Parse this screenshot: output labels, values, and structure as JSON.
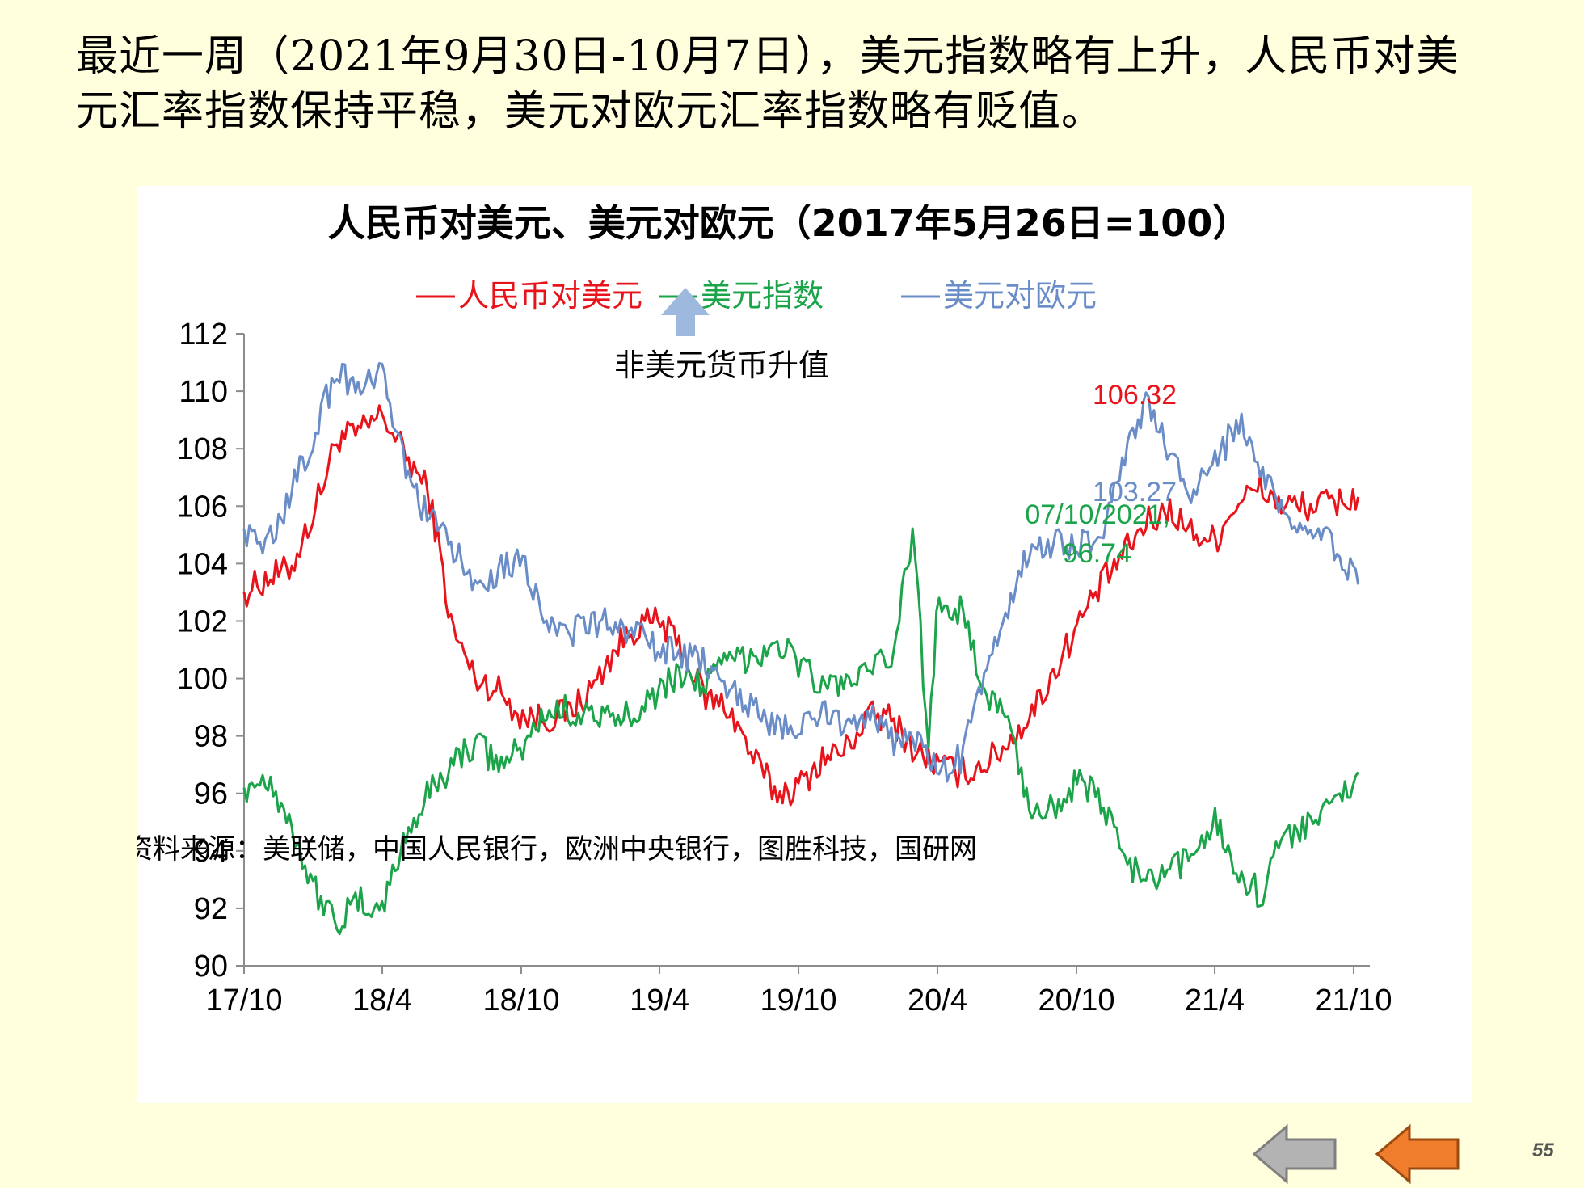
{
  "heading": {
    "line1": "最近一周（2021年9月30日-10月7日），美元指数略有上升，人民币对美",
    "line2": "元汇率指数保持平稳，美元对欧元汇率指数略有贬值。"
  },
  "source_note": "资料来源：美联储，中国人民银行，欧洲中央银行，图胜科技，国研网",
  "page_number": "55",
  "nav": {
    "back_icon": "gray-left-arrow-icon",
    "prev_icon": "orange-left-arrow-icon"
  },
  "chart_data": {
    "type": "line",
    "title": "人民币对美元、美元对欧元（2017年5月26日=100）",
    "legend_position": "top",
    "grid": false,
    "xlabel": "",
    "ylabel": "",
    "ylim": [
      90,
      112
    ],
    "yticks": [
      "90",
      "92",
      "94",
      "96",
      "98",
      "100",
      "102",
      "104",
      "106",
      "108",
      "110",
      "112"
    ],
    "xlim": [
      "2017-10",
      "2021-10"
    ],
    "xticks": [
      "17/10",
      "18/4",
      "18/10",
      "19/4",
      "19/10",
      "20/4",
      "20/10",
      "21/4",
      "21/10"
    ],
    "annotations": {
      "arrow_label": "非美元货币升值",
      "arrow_color": "#9DB9DD",
      "end_label_rmb": "106.32",
      "end_label_eur": "103.27",
      "end_label_usd_line1": "07/10/2021,",
      "end_label_usd_line2": "96.74"
    },
    "series": [
      {
        "name": "人民币对美元",
        "color": "#E8141B",
        "points": [
          [
            "2017-10-01",
            103.0
          ],
          [
            "2017-11-01",
            103.5
          ],
          [
            "2017-12-01",
            103.8
          ],
          [
            "2018-01-01",
            105.8
          ],
          [
            "2018-02-01",
            108.4
          ],
          [
            "2018-03-01",
            108.5
          ],
          [
            "2018-04-01",
            109.2
          ],
          [
            "2018-05-01",
            107.8
          ],
          [
            "2018-06-01",
            106.5
          ],
          [
            "2018-06-15",
            104.5
          ],
          [
            "2018-07-01",
            101.8
          ],
          [
            "2018-08-01",
            100.0
          ],
          [
            "2018-09-01",
            99.6
          ],
          [
            "2018-10-01",
            98.7
          ],
          [
            "2018-11-01",
            98.6
          ],
          [
            "2018-12-01",
            98.8
          ],
          [
            "2019-01-01",
            99.6
          ],
          [
            "2019-02-01",
            101.0
          ],
          [
            "2019-03-01",
            101.8
          ],
          [
            "2019-04-01",
            102.0
          ],
          [
            "2019-05-01",
            101.0
          ],
          [
            "2019-06-01",
            99.3
          ],
          [
            "2019-07-01",
            99.0
          ],
          [
            "2019-08-01",
            97.3
          ],
          [
            "2019-09-01",
            96.0
          ],
          [
            "2019-10-01",
            96.2
          ],
          [
            "2019-11-01",
            97.2
          ],
          [
            "2019-12-01",
            97.5
          ],
          [
            "2020-01-01",
            98.7
          ],
          [
            "2020-02-01",
            98.6
          ],
          [
            "2020-03-01",
            97.5
          ],
          [
            "2020-04-01",
            97.0
          ],
          [
            "2020-05-01",
            96.7
          ],
          [
            "2020-06-01",
            97.0
          ],
          [
            "2020-07-01",
            97.7
          ],
          [
            "2020-08-01",
            98.7
          ],
          [
            "2020-09-01",
            100.2
          ],
          [
            "2020-10-01",
            101.8
          ],
          [
            "2020-11-01",
            103.2
          ],
          [
            "2020-12-01",
            104.3
          ],
          [
            "2021-01-01",
            105.4
          ],
          [
            "2021-02-01",
            105.9
          ],
          [
            "2021-03-01",
            105.1
          ],
          [
            "2021-04-01",
            104.8
          ],
          [
            "2021-05-01",
            106.2
          ],
          [
            "2021-06-01",
            106.6
          ],
          [
            "2021-07-01",
            106.0
          ],
          [
            "2021-08-01",
            106.0
          ],
          [
            "2021-09-01",
            106.1
          ],
          [
            "2021-10-07",
            106.32
          ]
        ]
      },
      {
        "name": "美元指数",
        "color": "#1CA44A",
        "points": [
          [
            "2017-10-01",
            96.2
          ],
          [
            "2017-11-01",
            96.6
          ],
          [
            "2017-12-01",
            95.0
          ],
          [
            "2018-01-01",
            92.7
          ],
          [
            "2018-02-01",
            91.5
          ],
          [
            "2018-03-01",
            92.2
          ],
          [
            "2018-04-01",
            92.0
          ],
          [
            "2018-05-01",
            94.5
          ],
          [
            "2018-06-01",
            96.0
          ],
          [
            "2018-07-01",
            97.0
          ],
          [
            "2018-08-01",
            97.8
          ],
          [
            "2018-09-01",
            97.0
          ],
          [
            "2018-10-01",
            97.5
          ],
          [
            "2018-11-01",
            98.8
          ],
          [
            "2018-12-01",
            98.9
          ],
          [
            "2019-01-01",
            98.8
          ],
          [
            "2019-02-01",
            98.4
          ],
          [
            "2019-03-01",
            99.0
          ],
          [
            "2019-04-01",
            99.6
          ],
          [
            "2019-05-01",
            100.2
          ],
          [
            "2019-06-01",
            99.8
          ],
          [
            "2019-07-01",
            100.6
          ],
          [
            "2019-08-01",
            100.8
          ],
          [
            "2019-09-01",
            101.3
          ],
          [
            "2019-10-01",
            100.6
          ],
          [
            "2019-11-01",
            99.7
          ],
          [
            "2019-12-01",
            99.9
          ],
          [
            "2020-01-01",
            100.1
          ],
          [
            "2020-02-01",
            100.8
          ],
          [
            "2020-03-01",
            105.2
          ],
          [
            "2020-03-20",
            97.4
          ],
          [
            "2020-04-01",
            102.8
          ],
          [
            "2020-05-01",
            102.4
          ],
          [
            "2020-06-01",
            99.6
          ],
          [
            "2020-07-01",
            98.7
          ],
          [
            "2020-08-01",
            95.4
          ],
          [
            "2020-09-01",
            95.6
          ],
          [
            "2020-10-01",
            96.4
          ],
          [
            "2020-11-01",
            95.8
          ],
          [
            "2020-12-01",
            93.9
          ],
          [
            "2021-01-01",
            92.8
          ],
          [
            "2021-02-01",
            93.2
          ],
          [
            "2021-03-01",
            93.8
          ],
          [
            "2021-04-01",
            95.2
          ],
          [
            "2021-05-01",
            93.2
          ],
          [
            "2021-06-01",
            92.5
          ],
          [
            "2021-07-01",
            94.5
          ],
          [
            "2021-08-01",
            95.0
          ],
          [
            "2021-09-01",
            95.4
          ],
          [
            "2021-10-07",
            96.74
          ]
        ]
      },
      {
        "name": "美元对欧元",
        "color": "#6A8DC7",
        "points": [
          [
            "2017-10-01",
            105.2
          ],
          [
            "2017-11-01",
            104.6
          ],
          [
            "2017-12-01",
            106.4
          ],
          [
            "2018-01-01",
            108.5
          ],
          [
            "2018-02-01",
            110.8
          ],
          [
            "2018-03-01",
            110.0
          ],
          [
            "2018-04-01",
            110.5
          ],
          [
            "2018-05-01",
            107.4
          ],
          [
            "2018-06-01",
            105.5
          ],
          [
            "2018-07-01",
            104.6
          ],
          [
            "2018-08-01",
            103.3
          ],
          [
            "2018-09-01",
            103.8
          ],
          [
            "2018-10-01",
            104.3
          ],
          [
            "2018-11-01",
            102.2
          ],
          [
            "2018-12-01",
            101.6
          ],
          [
            "2019-01-01",
            101.8
          ],
          [
            "2019-02-01",
            102.0
          ],
          [
            "2019-03-01",
            101.5
          ],
          [
            "2019-04-01",
            101.0
          ],
          [
            "2019-05-01",
            100.8
          ],
          [
            "2019-06-01",
            100.5
          ],
          [
            "2019-07-01",
            99.8
          ],
          [
            "2019-08-01",
            99.0
          ],
          [
            "2019-09-01",
            98.3
          ],
          [
            "2019-10-01",
            98.2
          ],
          [
            "2019-11-01",
            98.8
          ],
          [
            "2019-12-01",
            98.5
          ],
          [
            "2020-01-01",
            98.8
          ],
          [
            "2020-02-01",
            97.8
          ],
          [
            "2020-03-01",
            98.0
          ],
          [
            "2020-04-01",
            96.7
          ],
          [
            "2020-05-01",
            97.2
          ],
          [
            "2020-06-01",
            99.8
          ],
          [
            "2020-07-01",
            102.5
          ],
          [
            "2020-08-01",
            104.4
          ],
          [
            "2020-09-01",
            104.8
          ],
          [
            "2020-10-01",
            104.6
          ],
          [
            "2020-11-01",
            105.0
          ],
          [
            "2020-12-01",
            107.6
          ],
          [
            "2021-01-01",
            109.5
          ],
          [
            "2021-02-01",
            107.8
          ],
          [
            "2021-03-01",
            106.4
          ],
          [
            "2021-04-01",
            107.4
          ],
          [
            "2021-05-01",
            109.0
          ],
          [
            "2021-06-01",
            107.2
          ],
          [
            "2021-07-01",
            105.5
          ],
          [
            "2021-08-01",
            105.0
          ],
          [
            "2021-09-01",
            104.8
          ],
          [
            "2021-10-07",
            103.27
          ]
        ]
      }
    ]
  }
}
